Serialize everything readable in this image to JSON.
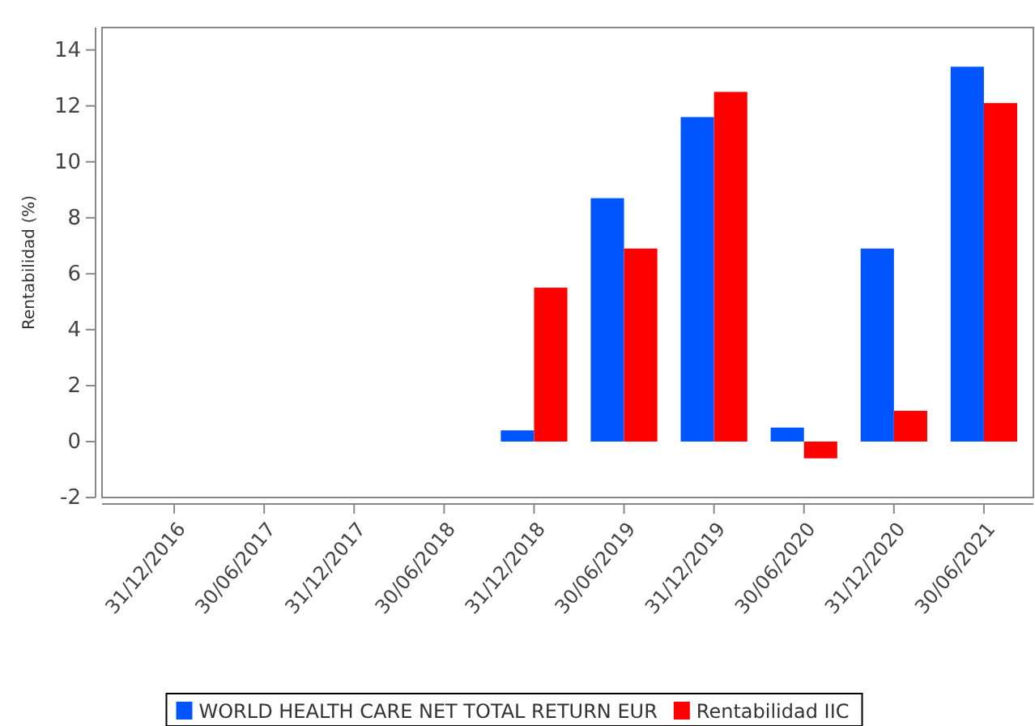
{
  "chart_data": {
    "type": "bar",
    "ylabel": "Rentabilidad (%)",
    "categories": [
      "31/12/2016",
      "30/06/2017",
      "31/12/2017",
      "30/06/2018",
      "31/12/2018",
      "30/06/2019",
      "31/12/2019",
      "30/06/2020",
      "31/12/2020",
      "30/06/2021"
    ],
    "series": [
      {
        "name": "WORLD HEALTH CARE NET TOTAL RETURN EUR",
        "color": "#0055ff",
        "values": [
          null,
          null,
          null,
          null,
          0.4,
          8.7,
          11.6,
          0.5,
          6.9,
          13.4
        ]
      },
      {
        "name": "Rentabilidad IIC",
        "color": "#ff0000",
        "values": [
          null,
          null,
          null,
          null,
          5.5,
          6.9,
          12.5,
          -0.6,
          1.1,
          12.1
        ]
      }
    ],
    "ylim": [
      -2,
      14.8
    ],
    "yticks": [
      -2,
      0,
      2,
      4,
      6,
      8,
      10,
      12,
      14
    ],
    "grid": false,
    "legend": "bottom"
  }
}
